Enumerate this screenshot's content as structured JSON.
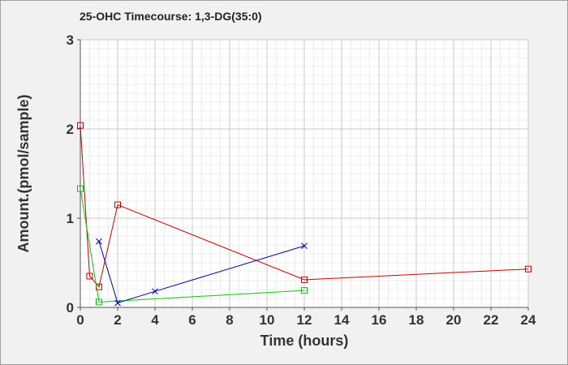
{
  "chart_data": {
    "type": "line",
    "title": "25-OHC Timecourse: 1,3-DG(35:0)",
    "xlabel": "Time (hours)",
    "ylabel": "Amount.(pmol/sample)",
    "xlim": [
      0,
      24
    ],
    "ylim": [
      0,
      3
    ],
    "x_ticks": [
      "0",
      "2",
      "4",
      "6",
      "8",
      "10",
      "12",
      "14",
      "16",
      "18",
      "20",
      "22",
      "24"
    ],
    "y_ticks": [
      "0",
      "1",
      "2",
      "3"
    ],
    "grid": true,
    "legend": "none",
    "series": [
      {
        "color": "#cc0000",
        "marker": "square",
        "x": [
          0,
          0.5,
          1,
          2,
          12,
          24
        ],
        "y": [
          2.04,
          0.35,
          0.23,
          1.15,
          0.31,
          0.43
        ]
      },
      {
        "color": "#00cc00",
        "marker": "square",
        "x": [
          0,
          1,
          12
        ],
        "y": [
          1.33,
          0.06,
          0.19
        ]
      },
      {
        "color": "#0000aa",
        "marker": "x",
        "x": [
          1,
          2,
          4,
          12
        ],
        "y": [
          0.74,
          0.05,
          0.18,
          0.69
        ]
      }
    ]
  }
}
